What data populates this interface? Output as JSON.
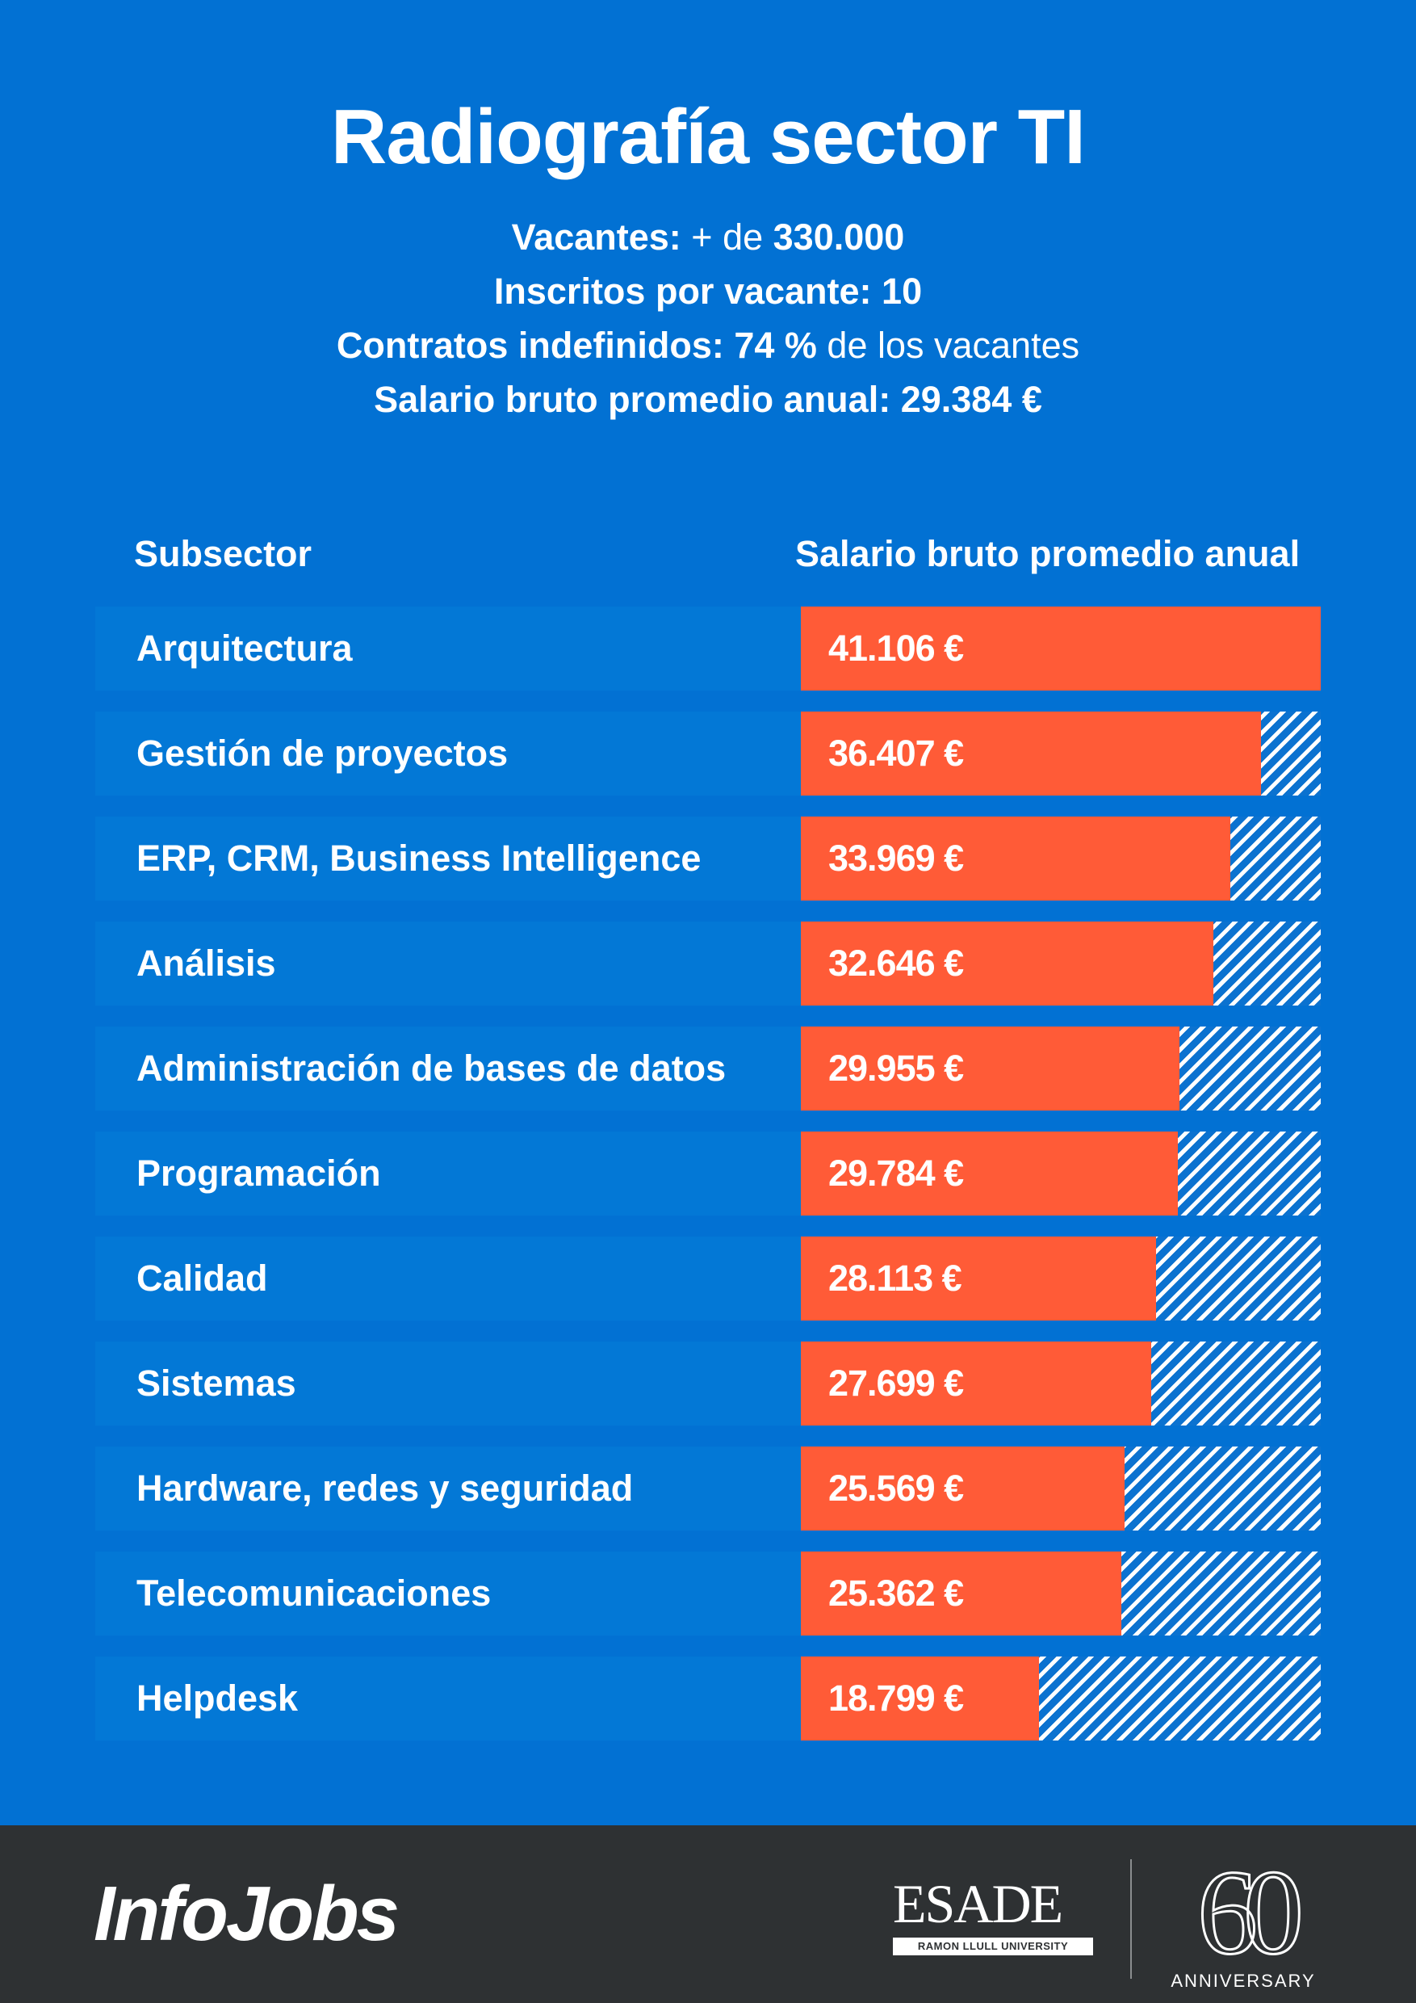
{
  "title": "Radiografía sector TI",
  "stats": {
    "vacantes_label": "Vacantes:",
    "vacantes_prefix": " + de ",
    "vacantes_value": "330.000",
    "inscritos": "Inscritos por vacante: 10",
    "contratos_label": "Contratos indefinidos: 74 %",
    "contratos_suffix": " de los vacantes",
    "salario": "Salario bruto promedio anual: 29.384 €"
  },
  "columns": {
    "subsector": "Subsector",
    "salary": "Salario bruto promedio anual"
  },
  "colors": {
    "background": "#0271d3",
    "bar": "#ff5b37",
    "footer": "#2e3133"
  },
  "chart_data": {
    "type": "bar",
    "orientation": "horizontal",
    "categories": [
      "Arquitectura",
      "Gestión de proyectos",
      "ERP, CRM, Business Intelligence",
      "Análisis",
      "Administración de bases de datos",
      "Programación",
      "Calidad",
      "Sistemas",
      "Hardware, redes y seguridad",
      "Telecomunicaciones",
      "Helpdesk"
    ],
    "values": [
      41106,
      36407,
      33969,
      32646,
      29955,
      29784,
      28113,
      27699,
      25569,
      25362,
      18799
    ],
    "value_labels": [
      "41.106 €",
      "36.407 €",
      "33.969 €",
      "32.646 €",
      "29.955 €",
      "29.784 €",
      "28.113 €",
      "27.699 €",
      "25.569 €",
      "25.362 €",
      "18.799 €"
    ],
    "xlabel": "Salario bruto promedio anual",
    "ylabel": "Subsector",
    "xlim": [
      0,
      41106
    ],
    "grid": false,
    "legend": "none"
  },
  "footer": {
    "infojobs": "InfoJobs",
    "esade": "ESADE",
    "esade_sub": "RAMON LLULL UNIVERSITY",
    "anniversary_number": "60",
    "anniversary_text": "ANNIVERSARY"
  }
}
